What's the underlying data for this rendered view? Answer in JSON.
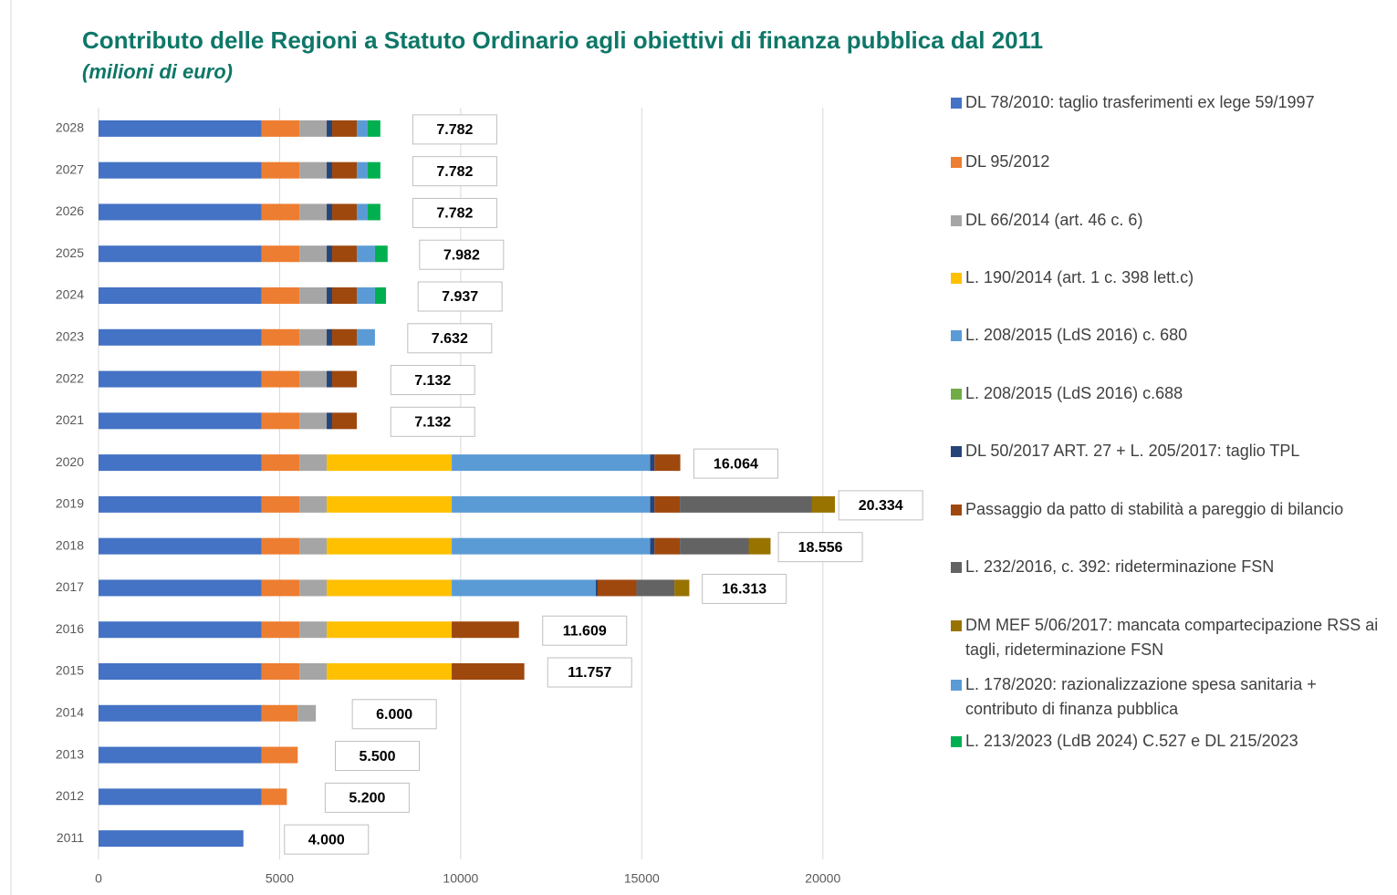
{
  "chart_data": {
    "type": "stacked-barh",
    "title": "Contributo delle Regioni a Statuto Ordinario agli obiettivi di finanza pubblica dal 2011",
    "subtitle": "(milioni di euro)",
    "categories": [
      "2011",
      "2012",
      "2013",
      "2014",
      "2015",
      "2016",
      "2017",
      "2018",
      "2019",
      "2020",
      "2021",
      "2022",
      "2023",
      "2024",
      "2025",
      "2026",
      "2027",
      "2028"
    ],
    "xlim": [
      0,
      22500
    ],
    "xticks": [
      0,
      5000,
      10000,
      15000,
      20000
    ],
    "grid": true,
    "legend": "right",
    "series": [
      {
        "name": "DL 78/2010: taglio trasferimenti ex lege 59/1997",
        "color": "#4472c4",
        "values": [
          4000,
          4500,
          4500,
          4500,
          4500,
          4500,
          4500,
          4500,
          4500,
          4500,
          4500,
          4500,
          4500,
          4500,
          4500,
          4500,
          4500,
          4500
        ]
      },
      {
        "name": "DL 95/2012",
        "color": "#ed7d31",
        "values": [
          null,
          700,
          1000,
          1000,
          1050,
          1050,
          1050,
          1050,
          1050,
          1050,
          1050,
          1050,
          1050,
          1050,
          1050,
          1050,
          1050,
          1050
        ]
      },
      {
        "name": "DL 66/2014 (art. 46 c. 6)",
        "color": "#a5a5a5",
        "values": [
          null,
          null,
          null,
          500,
          750,
          750,
          750,
          750,
          750,
          750,
          750,
          750,
          750,
          750,
          750,
          750,
          750,
          750
        ]
      },
      {
        "name": "L. 190/2014 (art. 1 c. 398 lett.c)",
        "color": "#ffc000",
        "values": [
          null,
          null,
          null,
          null,
          3452,
          3452,
          3452,
          3452,
          3452,
          3452,
          null,
          null,
          null,
          null,
          null,
          null,
          null,
          null
        ]
      },
      {
        "name": "L. 208/2015 (LdS 2016) c. 680",
        "color": "#5b9bd5",
        "values": [
          null,
          null,
          null,
          null,
          null,
          null,
          3980,
          5480,
          5480,
          5480,
          null,
          null,
          null,
          null,
          null,
          null,
          null,
          null
        ]
      },
      {
        "name": "L. 208/2015 (LdS 2016) c.688",
        "color": "#70ad47",
        "values": [
          null,
          null,
          null,
          null,
          null,
          null,
          null,
          null,
          null,
          null,
          null,
          null,
          null,
          null,
          null,
          null,
          null,
          null
        ]
      },
      {
        "name": "DL 50/2017 ART. 27 + L. 205/2017: taglio TPL",
        "color": "#264478",
        "values": [
          null,
          null,
          null,
          null,
          null,
          null,
          50,
          120,
          120,
          120,
          150,
          150,
          150,
          150,
          150,
          150,
          150,
          150
        ]
      },
      {
        "name": "Passaggio da patto di stabilità a pareggio di bilancio",
        "color": "#9e480e",
        "values": [
          null,
          null,
          null,
          null,
          2005,
          1857,
          1070,
          700,
          700,
          712,
          682,
          682,
          682,
          682,
          682,
          682,
          682,
          682
        ]
      },
      {
        "name": "L. 232/2016, c. 392: rideterminazione FSN",
        "color": "#636363",
        "values": [
          null,
          null,
          null,
          null,
          null,
          null,
          1050,
          1900,
          3650,
          null,
          null,
          null,
          null,
          null,
          null,
          null,
          null,
          null
        ]
      },
      {
        "name": "DM MEF 5/06/2017: mancata compartecipazione RSS ai tagli, rideterminazione FSN",
        "color": "#997300",
        "values": [
          null,
          null,
          null,
          null,
          null,
          null,
          411,
          604,
          632,
          null,
          null,
          null,
          null,
          null,
          null,
          null,
          null,
          null
        ]
      },
      {
        "name": "L. 178/2020: razionalizzazione spesa sanitaria + contributo di finanza pubblica",
        "color": "#5b9bd5",
        "values": [
          null,
          null,
          null,
          null,
          null,
          null,
          null,
          null,
          null,
          null,
          null,
          null,
          500,
          500,
          500,
          300,
          300,
          300
        ]
      },
      {
        "name": "L. 213/2023 (LdB 2024) C.527 e DL 215/2023",
        "color": "#00b050",
        "values": [
          null,
          null,
          null,
          null,
          null,
          null,
          null,
          null,
          null,
          null,
          null,
          null,
          null,
          305,
          350,
          350,
          350,
          350
        ]
      }
    ],
    "totals": [
      4000,
      5200,
      5500,
      6000,
      11757,
      11609,
      16313,
      18556,
      20334,
      16064,
      7132,
      7132,
      7632,
      7937,
      7982,
      7782,
      7782,
      7782
    ],
    "total_labels": [
      "4.000",
      "5.200",
      "5.500",
      "6.000",
      "11.757",
      "11.609",
      "16.313",
      "18.556",
      "20.334",
      "16.064",
      "7.132",
      "7.132",
      "7.632",
      "7.937",
      "7.982",
      "7.782",
      "7.782",
      "7.782"
    ]
  }
}
